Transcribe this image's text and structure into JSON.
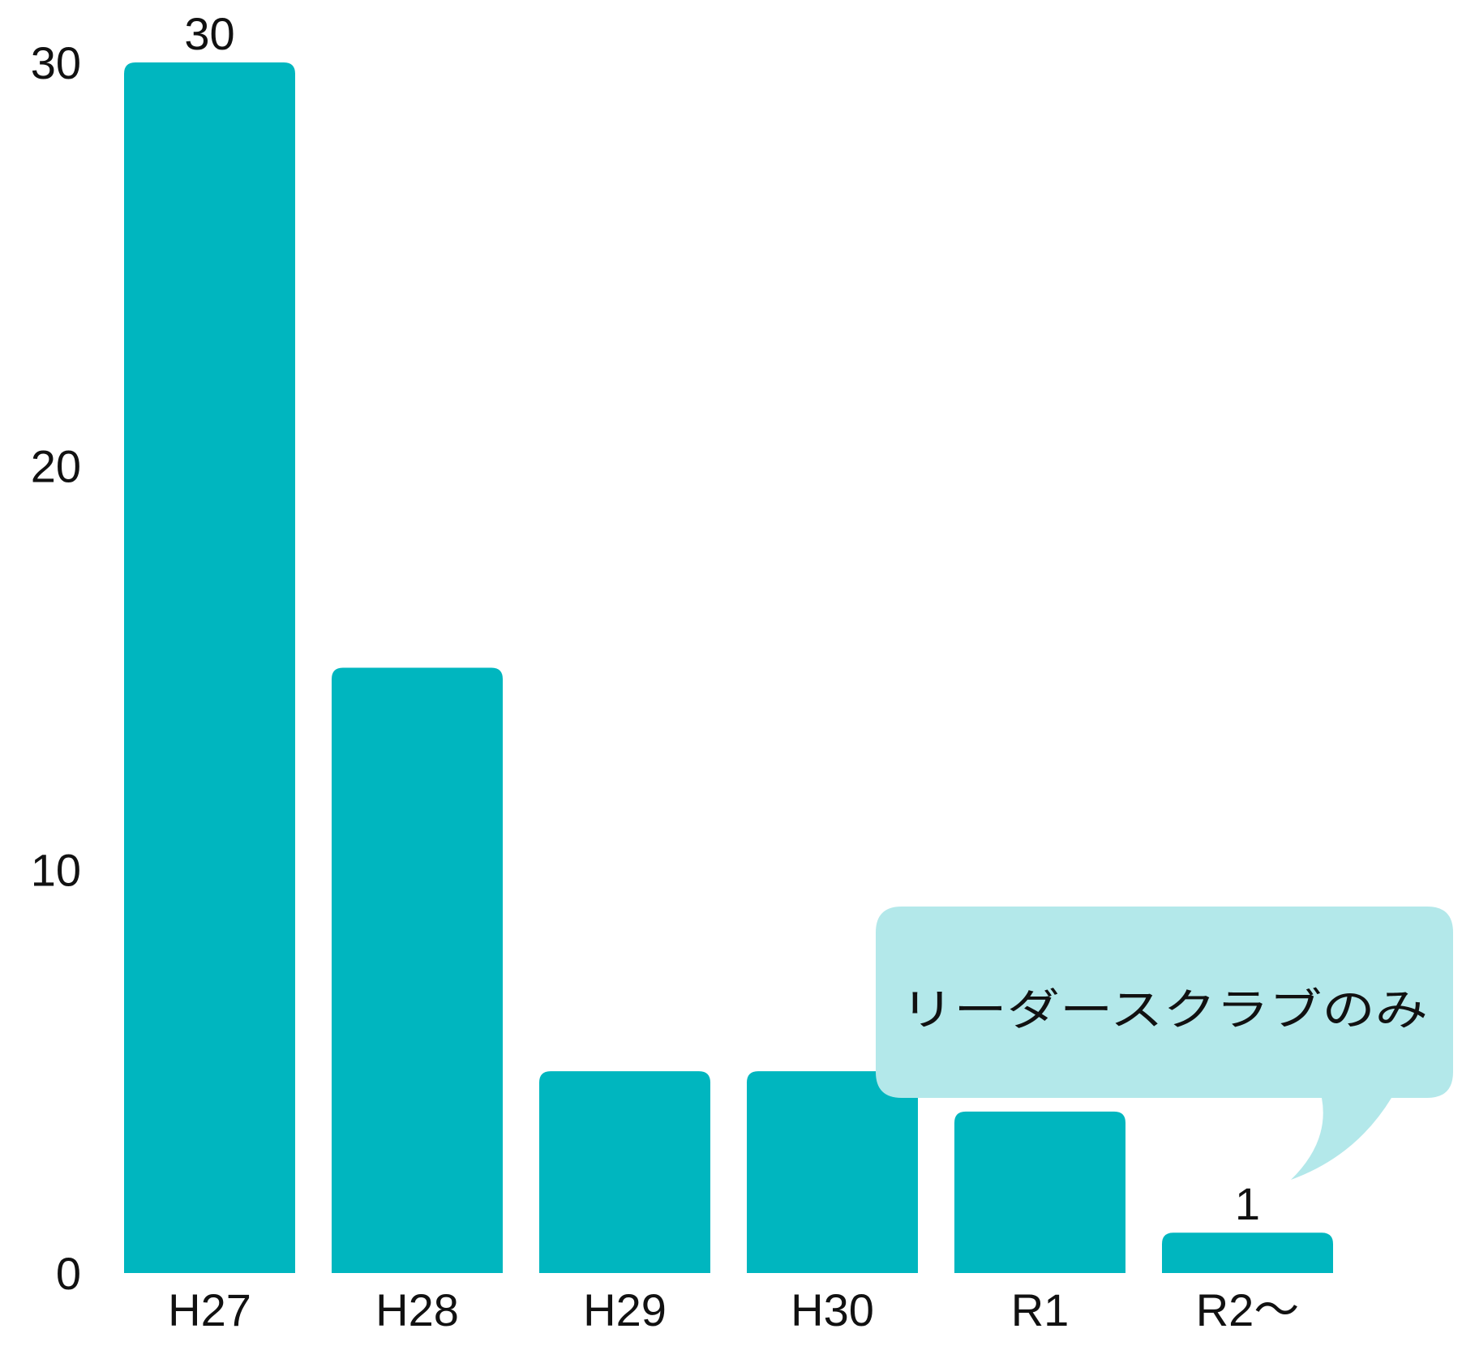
{
  "chart_data": {
    "type": "bar",
    "categories": [
      "H27",
      "H28",
      "H29",
      "H30",
      "R1",
      "R2〜"
    ],
    "values": [
      30,
      15,
      5,
      5,
      4,
      1
    ],
    "ylim": [
      0,
      30
    ],
    "yticks": [
      0,
      10,
      20,
      30
    ],
    "data_labels": [
      {
        "category": "H27",
        "text": "30"
      },
      {
        "category": "R2〜",
        "text": "1"
      }
    ],
    "title": "",
    "xlabel": "",
    "ylabel": "",
    "grid": false,
    "legend": "none",
    "annotation": {
      "text": "リーダースクラブのみ",
      "target_category": "R2〜"
    }
  },
  "colors": {
    "bar": "#00B6BF",
    "callout_bg": "#B3E8EA",
    "text": "#111111"
  }
}
